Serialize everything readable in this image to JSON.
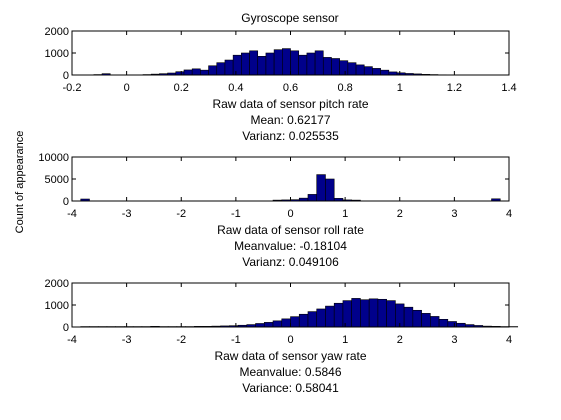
{
  "figure": {
    "title": "Gyroscope sensor",
    "ylabel": "Count of appearance",
    "bar_color": "#00008b"
  },
  "chart_data": [
    {
      "type": "bar",
      "title": "Gyroscope sensor",
      "xlabel": "Raw data of sensor pitch rate",
      "stats": [
        "Mean: 0.62177",
        "Varianz: 0.025535"
      ],
      "xlim": [
        -0.2,
        1.4
      ],
      "ylim": [
        0,
        2000
      ],
      "xticks": [
        "-0.2",
        "0",
        "0.2",
        "0.4",
        "0.6",
        "0.8",
        "1",
        "1.2",
        "1.4"
      ],
      "yticks": [
        "0",
        "1000",
        "2000"
      ],
      "bin_start": -0.12,
      "bin_width": 0.03,
      "values": [
        20,
        60,
        0,
        0,
        0,
        0,
        20,
        40,
        60,
        90,
        150,
        230,
        280,
        220,
        420,
        560,
        680,
        900,
        1000,
        1100,
        850,
        1000,
        1150,
        1200,
        1100,
        900,
        1000,
        1100,
        800,
        750,
        650,
        560,
        460,
        380,
        300,
        220,
        140,
        100,
        70,
        50,
        30,
        20,
        10,
        5,
        5
      ]
    },
    {
      "type": "bar",
      "title": "",
      "xlabel": "Raw data of sensor roll rate",
      "stats": [
        "Meanvalue: -0.18104",
        "Varianz: 0.049106"
      ],
      "xlim": [
        -4,
        4
      ],
      "ylim": [
        0,
        10000
      ],
      "xticks": [
        "-4",
        "-3",
        "-2",
        "-1",
        "0",
        "1",
        "2",
        "3",
        "4"
      ],
      "yticks": [
        "0",
        "5000",
        "10000"
      ],
      "bin_start": -4.0,
      "bin_width": 0.16,
      "values": [
        0,
        450,
        0,
        0,
        0,
        0,
        0,
        0,
        0,
        0,
        0,
        0,
        0,
        0,
        0,
        0,
        0,
        0,
        0,
        0,
        0,
        0,
        0,
        200,
        250,
        300,
        650,
        1500,
        6000,
        5000,
        600,
        250,
        200,
        0,
        0,
        0,
        0,
        0,
        0,
        0,
        0,
        0,
        0,
        0,
        0,
        0,
        0,
        0,
        500,
        0
      ]
    },
    {
      "type": "bar",
      "title": "",
      "xlabel": "Raw data of sensor yaw rate",
      "stats": [
        "Meanvalue: 0.5846",
        "Variance: 0.58041"
      ],
      "xlim": [
        -4,
        4
      ],
      "ylim": [
        0,
        2000
      ],
      "xticks": [
        "-4",
        "-3",
        "-2",
        "-1",
        "0",
        "1",
        "2",
        "3",
        "4"
      ],
      "yticks": [
        "0",
        "1000",
        "2000"
      ],
      "bin_start": -3.84,
      "bin_width": 0.16,
      "values": [
        20,
        20,
        20,
        20,
        20,
        20,
        20,
        20,
        30,
        20,
        20,
        20,
        20,
        30,
        30,
        40,
        50,
        60,
        80,
        110,
        160,
        210,
        280,
        370,
        470,
        580,
        700,
        820,
        950,
        1080,
        1200,
        1300,
        1240,
        1280,
        1260,
        1200,
        1050,
        900,
        760,
        620,
        480,
        350,
        250,
        170,
        110,
        70,
        40,
        30,
        20,
        20
      ]
    }
  ]
}
